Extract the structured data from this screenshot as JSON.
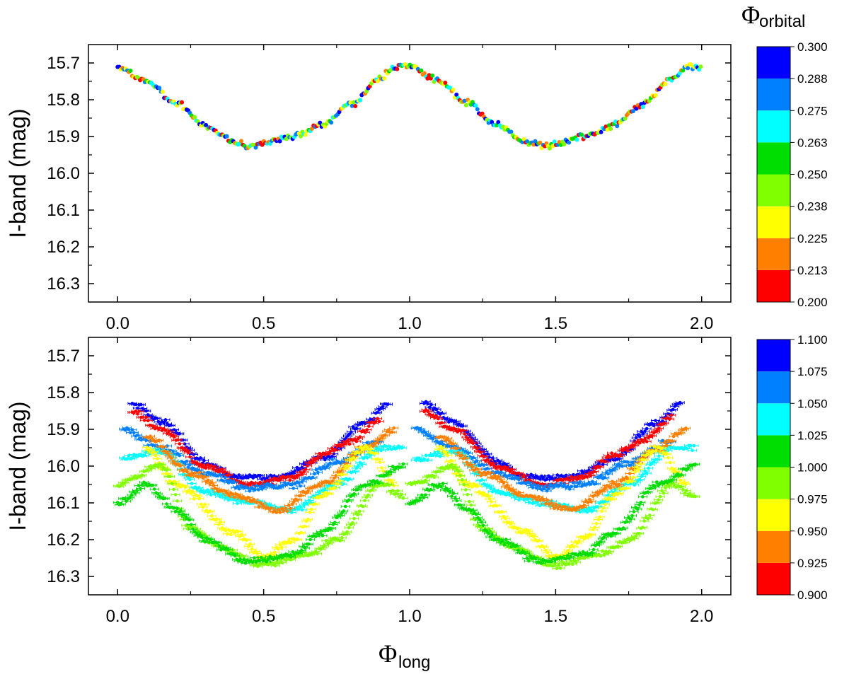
{
  "chart_data": [
    {
      "type": "scatter",
      "ylabel": "I-band (mag)",
      "xlabel_symbol": "Φ",
      "xlabel_sub": "long",
      "xlim": [
        -0.1,
        2.1
      ],
      "ylim": [
        16.35,
        15.65
      ],
      "y_inverted": true,
      "x_ticks": [
        "0.0",
        "0.5",
        "1.0",
        "1.5",
        "2.0"
      ],
      "y_ticks": [
        "15.7",
        "15.8",
        "15.9",
        "16.0",
        "16.1",
        "16.2",
        "16.3"
      ],
      "error_bars": false,
      "colorbar": {
        "title_symbol": "Φ",
        "title_sub": "orbital",
        "range": [
          0.2,
          0.3
        ],
        "labels": [
          "0.200",
          "0.213",
          "0.225",
          "0.238",
          "0.250",
          "0.263",
          "0.275",
          "0.288",
          "0.300"
        ],
        "colors": [
          "#ff0000",
          "#ff8000",
          "#ffff00",
          "#80ff00",
          "#00dd00",
          "#00ffff",
          "#0080ff",
          "#0000ff"
        ]
      },
      "curve_model": {
        "description": "periodic light curve sampled across phase 0 to 2",
        "knots_x": [
          0.0,
          0.1,
          0.2,
          0.3,
          0.4,
          0.45,
          0.5,
          0.6,
          0.7,
          0.8,
          0.9,
          0.95,
          1.0
        ],
        "knots_y": [
          15.71,
          15.75,
          15.81,
          15.87,
          15.915,
          15.925,
          15.92,
          15.9,
          15.87,
          15.81,
          15.74,
          15.71,
          15.71
        ],
        "scatter": 0.012
      }
    },
    {
      "type": "scatter",
      "ylabel": "I-band (mag)",
      "xlabel_symbol": "Φ",
      "xlabel_sub": "long",
      "xlim": [
        -0.1,
        2.1
      ],
      "ylim": [
        16.35,
        15.65
      ],
      "y_inverted": true,
      "x_ticks": [
        "0.0",
        "0.5",
        "1.0",
        "1.5",
        "2.0"
      ],
      "y_ticks": [
        "15.7",
        "15.8",
        "15.9",
        "16.0",
        "16.1",
        "16.2",
        "16.3"
      ],
      "error_bars": true,
      "colorbar": {
        "range": [
          0.9,
          1.1
        ],
        "labels": [
          "0.900",
          "0.925",
          "0.950",
          "0.975",
          "1.000",
          "1.025",
          "1.050",
          "1.075",
          "1.100"
        ],
        "colors": [
          "#ff0000",
          "#ff8000",
          "#ffff00",
          "#80ff00",
          "#00dd00",
          "#00ffff",
          "#0080ff",
          "#0000ff"
        ]
      },
      "band_model": {
        "description": "series of light-curve tracks per color bin",
        "tracks": [
          {
            "bin": 7,
            "knots_x": [
              0.05,
              0.15,
              0.3,
              0.4,
              0.55,
              0.7,
              0.85,
              0.93
            ],
            "knots_y": [
              15.83,
              15.88,
              15.99,
              16.03,
              16.03,
              15.98,
              15.88,
              15.83
            ]
          },
          {
            "bin": 0,
            "knots_x": [
              0.05,
              0.15,
              0.3,
              0.45,
              0.6,
              0.7,
              0.8,
              0.9
            ],
            "knots_y": [
              15.85,
              15.9,
              16.0,
              16.05,
              16.03,
              15.97,
              15.93,
              15.87
            ]
          },
          {
            "bin": 6,
            "knots_x": [
              0.02,
              0.15,
              0.3,
              0.45,
              0.6,
              0.75,
              0.9
            ],
            "knots_y": [
              15.9,
              15.95,
              16.02,
              16.06,
              16.05,
              15.99,
              15.93
            ]
          },
          {
            "bin": 5,
            "knots_x": [
              0.02,
              0.15,
              0.3,
              0.45,
              0.6,
              0.75,
              0.9,
              0.98
            ],
            "knots_y": [
              15.98,
              15.96,
              16.07,
              16.1,
              16.12,
              16.05,
              15.95,
              15.95
            ]
          },
          {
            "bin": 1,
            "knots_x": [
              0.1,
              0.25,
              0.4,
              0.55,
              0.7,
              0.85,
              0.95
            ],
            "knots_y": [
              15.92,
              16.02,
              16.08,
              16.12,
              16.05,
              15.95,
              15.9
            ]
          },
          {
            "bin": 2,
            "knots_x": [
              0.1,
              0.2,
              0.4,
              0.5,
              0.6,
              0.7,
              0.85,
              0.95
            ],
            "knots_y": [
              15.95,
              16.05,
              16.18,
              16.25,
              16.2,
              16.08,
              15.95,
              16.05
            ]
          },
          {
            "bin": 3,
            "knots_x": [
              0.0,
              0.15,
              0.25,
              0.35,
              0.5,
              0.65,
              0.75,
              0.9,
              0.98
            ],
            "knots_y": [
              16.05,
              16.0,
              16.17,
              16.22,
              16.27,
              16.24,
              16.2,
              16.05,
              16.08
            ]
          },
          {
            "bin": 4,
            "knots_x": [
              0.0,
              0.1,
              0.2,
              0.3,
              0.45,
              0.6,
              0.7,
              0.85,
              0.98
            ],
            "knots_y": [
              16.1,
              16.05,
              16.12,
              16.2,
              16.26,
              16.24,
              16.18,
              16.05,
              16.0
            ]
          }
        ],
        "scatter": 0.012
      }
    }
  ]
}
